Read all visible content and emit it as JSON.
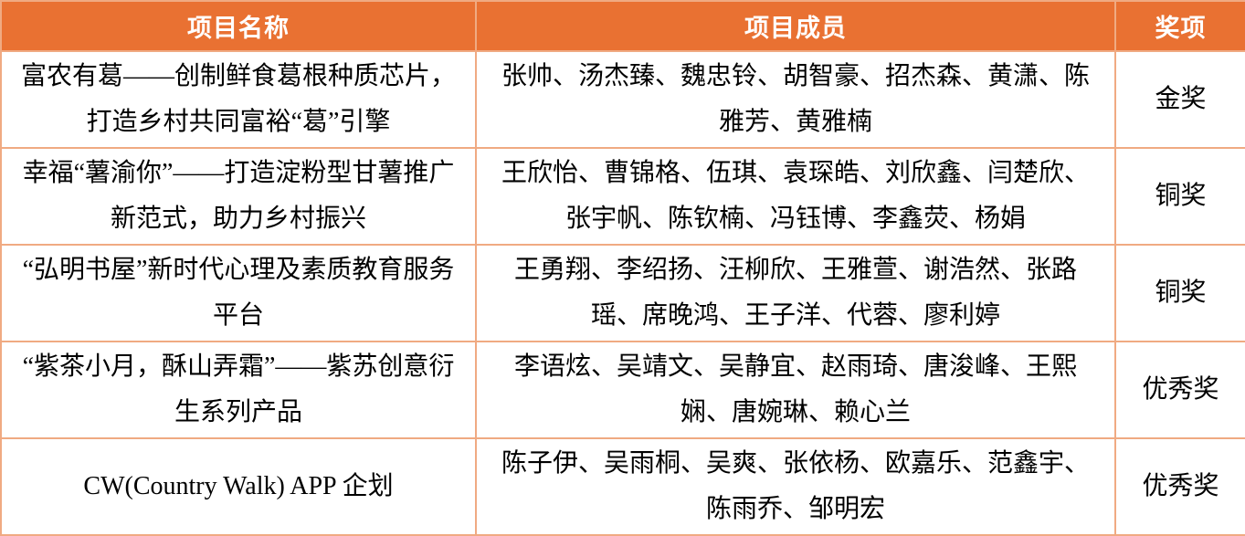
{
  "colors": {
    "header_bg": "#E97132",
    "header_text": "#FFFFFF",
    "border": "#F0AA82",
    "body_text": "#000000"
  },
  "table": {
    "columns": [
      {
        "key": "name",
        "label": "项目名称"
      },
      {
        "key": "members",
        "label": "项目成员"
      },
      {
        "key": "award",
        "label": "奖项"
      }
    ],
    "rows": [
      {
        "name": "富农有葛——创制鲜食葛根种质芯片，打造乡村共同富裕“葛”引擎",
        "members": "张帅、汤杰臻、魏忠铃、胡智豪、招杰森、黄潇、陈雅芳、黄雅楠",
        "award": "金奖"
      },
      {
        "name": "幸福“薯渝你”——打造淀粉型甘薯推广新范式，助力乡村振兴",
        "members": "王欣怡、曹锦格、伍琪、袁琛皓、刘欣鑫、闫楚欣、张宇帆、陈钦楠、冯钰博、李鑫荧、杨娟",
        "award": "铜奖"
      },
      {
        "name": "“弘明书屋”新时代心理及素质教育服务平台",
        "members": "王勇翔、李绍扬、汪柳欣、王雅萱、谢浩然、张路瑶、席晚鸿、王子洋、代蓉、廖利婷",
        "award": "铜奖"
      },
      {
        "name": "“紫茶小月，酥山弄霜”——紫苏创意衍生系列产品",
        "members": "李语炫、吴靖文、吴静宜、赵雨琦、唐浚峰、王熙娴、唐婉琳、赖心兰",
        "award": "优秀奖"
      },
      {
        "name": "CW(Country Walk) APP  企划",
        "members": "陈子伊、吴雨桐、吴爽、张依杨、欧嘉乐、范鑫宇、陈雨乔、邹明宏",
        "award": "优秀奖"
      }
    ]
  }
}
